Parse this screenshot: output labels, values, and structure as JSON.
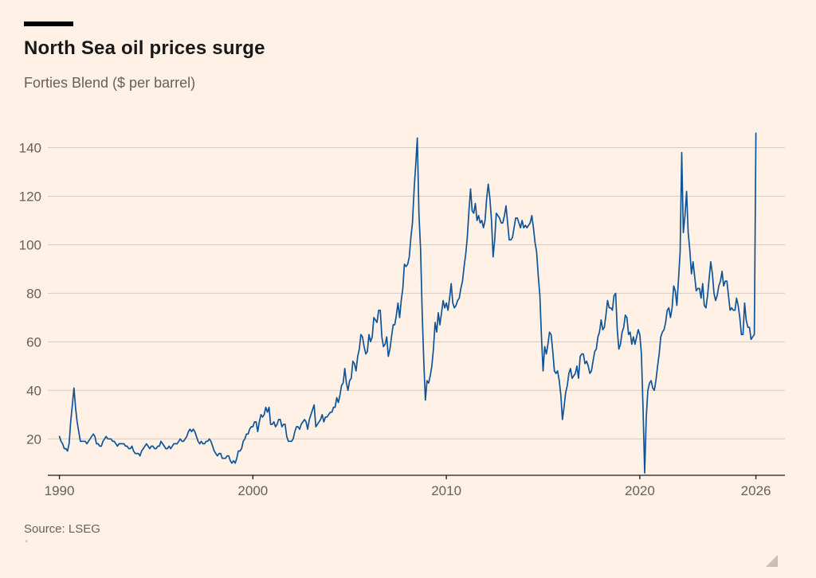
{
  "header": {
    "title": "North Sea oil prices surge",
    "subtitle": "Forties Blend ($ per barrel)"
  },
  "footer": {
    "source": "Source: LSEG",
    "mark": "'"
  },
  "chart_data": {
    "type": "line",
    "title": "North Sea oil prices surge",
    "subtitle": "Forties Blend ($ per barrel)",
    "unit": "$ per barrel",
    "source": "Source: LSEG",
    "line_color": "#0f5499",
    "grid_color": "#d5cabd",
    "axis_color": "#1a1817",
    "tick_text_color": "#66605b",
    "background": "#fff1e5",
    "xlim": [
      1989.4,
      2027.5
    ],
    "ylim": [
      5,
      150
    ],
    "grid": true,
    "legend": "none",
    "yticks": [
      20,
      40,
      60,
      80,
      100,
      120,
      140
    ],
    "xticks": [
      {
        "v": 1990,
        "label": "1990"
      },
      {
        "v": 2000,
        "label": "2000"
      },
      {
        "v": 2010,
        "label": "2010"
      },
      {
        "v": 2020,
        "label": "2020"
      },
      {
        "v": 2026,
        "label": "2026"
      }
    ],
    "series": [
      {
        "name": "Forties Blend",
        "start_year": 1990,
        "samples_per_year": 12,
        "values": [
          21,
          19,
          18,
          16,
          16,
          15,
          18,
          27,
          34,
          41,
          33,
          27,
          23,
          19,
          19,
          19,
          19,
          18,
          19,
          20,
          21,
          22,
          21,
          18,
          18,
          17,
          17,
          19,
          20,
          21,
          20,
          20,
          20,
          19,
          19,
          18,
          17,
          18,
          18,
          18,
          18,
          17,
          17,
          16,
          16,
          17,
          15,
          14,
          14,
          14,
          13,
          15,
          16,
          17,
          18,
          17,
          16,
          17,
          17,
          16,
          16,
          17,
          17,
          19,
          18,
          17,
          16,
          16,
          17,
          16,
          17,
          18,
          18,
          18,
          19,
          20,
          19,
          19,
          20,
          21,
          23,
          24,
          23,
          24,
          23,
          21,
          19,
          18,
          19,
          18,
          18,
          19,
          19,
          20,
          19,
          17,
          15,
          14,
          13,
          14,
          14,
          12,
          12,
          12,
          13,
          13,
          11,
          10,
          11,
          10,
          12,
          15,
          15,
          16,
          19,
          20,
          22,
          22,
          24,
          25,
          25,
          27,
          27,
          23,
          27,
          30,
          29,
          30,
          33,
          31,
          33,
          26,
          26,
          27,
          25,
          26,
          28,
          28,
          25,
          26,
          26,
          21,
          19,
          19,
          19,
          20,
          23,
          25,
          25,
          24,
          26,
          27,
          28,
          27,
          24,
          28,
          30,
          32,
          34,
          25,
          26,
          27,
          28,
          30,
          27,
          29,
          29,
          30,
          31,
          31,
          33,
          33,
          37,
          35,
          38,
          42,
          43,
          49,
          43,
          40,
          44,
          45,
          52,
          51,
          48,
          54,
          57,
          63,
          62,
          58,
          55,
          56,
          63,
          60,
          62,
          70,
          69,
          68,
          73,
          73,
          62,
          58,
          59,
          62,
          54,
          57,
          62,
          67,
          67,
          71,
          76,
          70,
          77,
          82,
          92,
          91,
          92,
          95,
          103,
          109,
          123,
          133,
          144,
          113,
          98,
          72,
          52,
          36,
          44,
          43,
          46,
          50,
          57,
          68,
          64,
          72,
          67,
          72,
          77,
          74,
          76,
          73,
          78,
          84,
          76,
          74,
          75,
          77,
          78,
          82,
          85,
          91,
          96,
          103,
          114,
          123,
          114,
          113,
          117,
          110,
          112,
          109,
          110,
          107,
          110,
          119,
          125,
          119,
          110,
          95,
          102,
          113,
          112,
          111,
          109,
          109,
          112,
          116,
          109,
          102,
          102,
          103,
          107,
          111,
          111,
          109,
          107,
          110,
          107,
          108,
          107,
          108,
          109,
          112,
          107,
          101,
          97,
          87,
          79,
          62,
          48,
          58,
          55,
          59,
          64,
          63,
          56,
          48,
          47,
          48,
          44,
          38,
          28,
          33,
          39,
          42,
          47,
          49,
          45,
          46,
          47,
          50,
          45,
          54,
          55,
          55,
          51,
          52,
          50,
          47,
          48,
          52,
          56,
          57,
          62,
          64,
          69,
          65,
          66,
          71,
          77,
          74,
          74,
          73,
          79,
          80,
          65,
          57,
          59,
          64,
          66,
          71,
          70,
          63,
          64,
          59,
          62,
          59,
          62,
          65,
          63,
          55,
          32,
          6,
          29,
          40,
          43,
          44,
          41,
          40,
          44,
          50,
          55,
          62,
          64,
          65,
          68,
          73,
          74,
          70,
          74,
          83,
          81,
          75,
          86,
          97,
          138,
          105,
          112,
          122,
          105,
          98,
          88,
          93,
          87,
          81,
          82,
          82,
          78,
          84,
          75,
          74,
          79,
          86,
          93,
          88,
          80,
          77,
          79,
          83,
          85,
          89,
          83,
          85,
          85,
          79,
          73,
          74,
          73,
          73,
          78,
          75,
          70,
          63,
          63,
          76,
          69,
          66,
          66,
          61,
          62,
          63,
          146
        ]
      }
    ]
  }
}
